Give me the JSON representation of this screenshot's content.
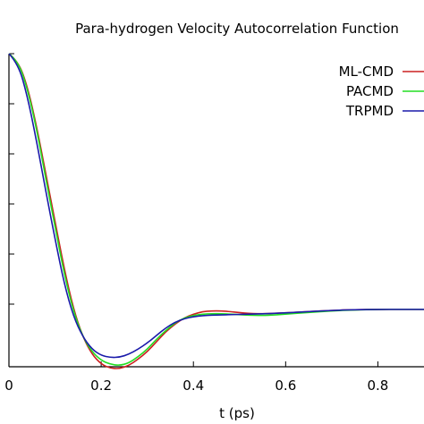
{
  "chart_data": {
    "type": "line",
    "title": "Para-hydrogen Velocity Autocorrelation Function",
    "xlabel": "t (ps)",
    "ylabel": "",
    "xlim": [
      0,
      0.9
    ],
    "ylim": [
      -0.25,
      1.0
    ],
    "x_ticks": [
      0,
      0.2,
      0.4,
      0.6,
      0.8
    ],
    "x_tick_labels": [
      "0",
      "0.2",
      "0.4",
      "0.6",
      "0.8"
    ],
    "y_ticks": [
      0,
      0.2,
      0.4,
      0.6,
      0.8,
      1.0
    ],
    "legend_position": "top-right",
    "grid": false,
    "series": [
      {
        "name": "ML-CMD",
        "color": "#cc2020",
        "x": [
          0,
          0.02,
          0.04,
          0.06,
          0.08,
          0.1,
          0.12,
          0.14,
          0.16,
          0.18,
          0.2,
          0.22,
          0.24,
          0.26,
          0.28,
          0.3,
          0.32,
          0.34,
          0.36,
          0.38,
          0.4,
          0.42,
          0.44,
          0.46,
          0.48,
          0.5,
          0.52,
          0.54,
          0.56,
          0.6,
          0.65,
          0.7,
          0.75,
          0.8,
          0.85,
          0.9
        ],
        "y": [
          1.0,
          0.97,
          0.87,
          0.71,
          0.52,
          0.33,
          0.14,
          -0.02,
          -0.13,
          -0.2,
          -0.24,
          -0.256,
          -0.258,
          -0.245,
          -0.22,
          -0.19,
          -0.15,
          -0.11,
          -0.08,
          -0.055,
          -0.04,
          -0.03,
          -0.027,
          -0.027,
          -0.03,
          -0.034,
          -0.037,
          -0.038,
          -0.038,
          -0.035,
          -0.03,
          -0.025,
          -0.022,
          -0.021,
          -0.021,
          -0.021
        ]
      },
      {
        "name": "PACMD",
        "color": "#22dd22",
        "x": [
          0,
          0.02,
          0.04,
          0.06,
          0.08,
          0.1,
          0.12,
          0.14,
          0.16,
          0.18,
          0.2,
          0.22,
          0.24,
          0.26,
          0.28,
          0.3,
          0.32,
          0.34,
          0.36,
          0.38,
          0.4,
          0.42,
          0.44,
          0.46,
          0.48,
          0.5,
          0.52,
          0.54,
          0.56,
          0.6,
          0.65,
          0.7,
          0.75,
          0.8,
          0.85,
          0.9
        ],
        "y": [
          1.0,
          0.97,
          0.86,
          0.7,
          0.5,
          0.31,
          0.12,
          -0.03,
          -0.13,
          -0.19,
          -0.225,
          -0.24,
          -0.245,
          -0.235,
          -0.21,
          -0.18,
          -0.14,
          -0.105,
          -0.075,
          -0.055,
          -0.045,
          -0.04,
          -0.038,
          -0.038,
          -0.04,
          -0.042,
          -0.044,
          -0.045,
          -0.045,
          -0.04,
          -0.033,
          -0.027,
          -0.023,
          -0.021,
          -0.021,
          -0.021
        ]
      },
      {
        "name": "TRPMD",
        "color": "#1a1aaa",
        "x": [
          0,
          0.02,
          0.04,
          0.06,
          0.08,
          0.1,
          0.12,
          0.14,
          0.16,
          0.18,
          0.2,
          0.22,
          0.24,
          0.26,
          0.28,
          0.3,
          0.32,
          0.34,
          0.36,
          0.38,
          0.4,
          0.42,
          0.44,
          0.46,
          0.48,
          0.5,
          0.52,
          0.54,
          0.56,
          0.6,
          0.65,
          0.7,
          0.75,
          0.8,
          0.85,
          0.9
        ],
        "y": [
          1.0,
          0.96,
          0.83,
          0.65,
          0.45,
          0.26,
          0.08,
          -0.05,
          -0.13,
          -0.18,
          -0.205,
          -0.213,
          -0.212,
          -0.2,
          -0.18,
          -0.155,
          -0.125,
          -0.095,
          -0.072,
          -0.058,
          -0.05,
          -0.046,
          -0.044,
          -0.043,
          -0.042,
          -0.041,
          -0.04,
          -0.039,
          -0.038,
          -0.035,
          -0.03,
          -0.025,
          -0.022,
          -0.021,
          -0.021,
          -0.021
        ]
      }
    ]
  }
}
